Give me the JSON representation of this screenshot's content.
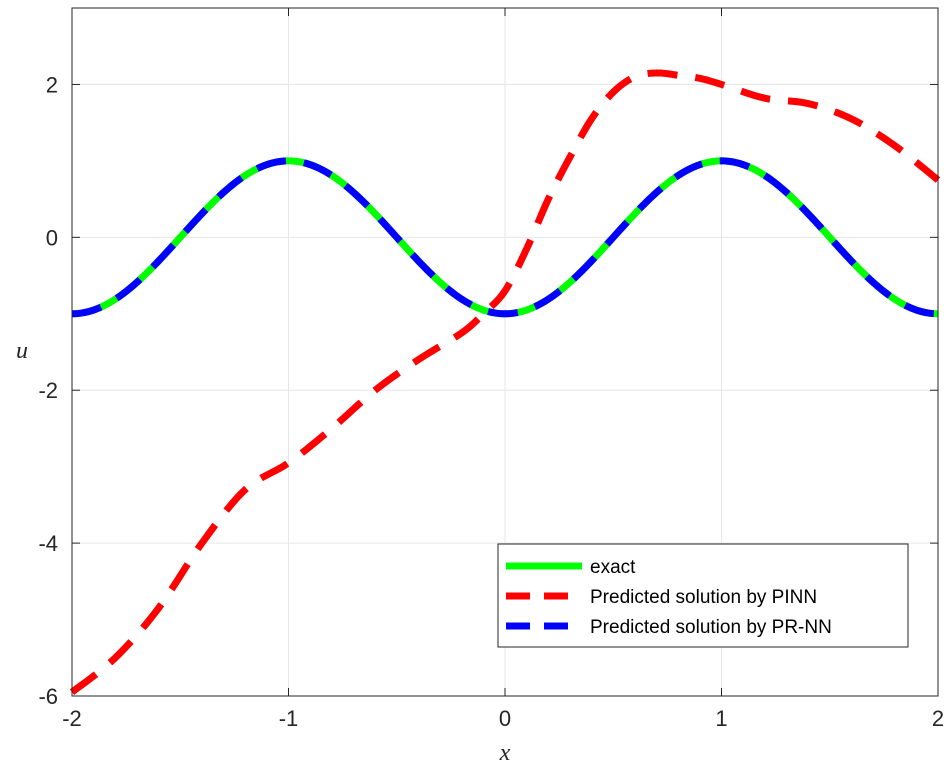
{
  "chart_data": {
    "type": "line",
    "xlabel": "x",
    "ylabel": "u",
    "xlim": [
      -2,
      2
    ],
    "ylim": [
      -6,
      3
    ],
    "xticks": [
      -2,
      -1,
      0,
      1,
      2
    ],
    "yticks": [
      -6,
      -4,
      -2,
      0,
      2
    ],
    "xtick_labels": [
      "-2",
      "-1",
      "0",
      "1",
      "2"
    ],
    "ytick_labels": [
      "-6",
      "-4",
      "-2",
      "0",
      "2"
    ],
    "grid": true,
    "legend_position": "bottom-right",
    "series": [
      {
        "name": "exact",
        "color": "#00ff00",
        "style": "solid",
        "function": "-cos(pi*x)",
        "x": [
          -2,
          -1.75,
          -1.5,
          -1.25,
          -1,
          -0.75,
          -0.5,
          -0.25,
          0,
          0.25,
          0.5,
          0.75,
          1,
          1.25,
          1.5,
          1.75,
          2
        ],
        "y": [
          -1,
          -0.71,
          0,
          0.71,
          1,
          0.71,
          0,
          -0.71,
          -1,
          -0.71,
          0,
          0.71,
          1,
          0.71,
          0,
          -0.71,
          -1
        ]
      },
      {
        "name": "Predicted solution by PINN",
        "color": "#ff0000",
        "style": "dashed",
        "x": [
          -2,
          -1.8,
          -1.6,
          -1.4,
          -1.2,
          -1.0,
          -0.8,
          -0.6,
          -0.4,
          -0.2,
          -0.1,
          0,
          0.1,
          0.2,
          0.3,
          0.4,
          0.5,
          0.6,
          0.7,
          0.8,
          0.9,
          1.0,
          1.2,
          1.4,
          1.6,
          1.8,
          2.0
        ],
        "y": [
          -5.95,
          -5.5,
          -4.85,
          -4.0,
          -3.3,
          -2.95,
          -2.5,
          -2.0,
          -1.6,
          -1.25,
          -1.0,
          -0.7,
          -0.15,
          0.5,
          1.05,
          1.55,
          1.9,
          2.1,
          2.15,
          2.12,
          2.08,
          2.0,
          1.82,
          1.75,
          1.55,
          1.2,
          0.75
        ]
      },
      {
        "name": "Predicted solution by PR-NN",
        "color": "#0000ff",
        "style": "dashed",
        "function": "-cos(pi*x)",
        "x": [
          -2,
          -1.75,
          -1.5,
          -1.25,
          -1,
          -0.75,
          -0.5,
          -0.25,
          0,
          0.25,
          0.5,
          0.75,
          1,
          1.25,
          1.5,
          1.75,
          2
        ],
        "y": [
          -1,
          -0.71,
          0,
          0.71,
          1,
          0.71,
          0,
          -0.71,
          -1,
          -0.71,
          0,
          0.71,
          1,
          0.71,
          0,
          -0.71,
          -1
        ]
      }
    ]
  }
}
